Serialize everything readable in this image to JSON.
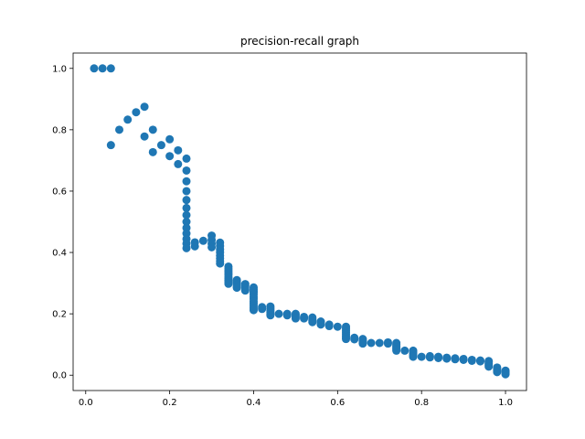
{
  "chart_data": {
    "type": "scatter",
    "title": "precision-recall graph",
    "xlabel": "",
    "ylabel": "",
    "xlim": [
      -0.03,
      1.05
    ],
    "ylim": [
      -0.05,
      1.05
    ],
    "x_ticks": [
      0.0,
      0.2,
      0.4,
      0.6,
      0.8,
      1.0
    ],
    "x_tick_labels": [
      "0.0",
      "0.2",
      "0.4",
      "0.6",
      "0.8",
      "1.0"
    ],
    "y_ticks": [
      0.0,
      0.2,
      0.4,
      0.6,
      0.8,
      1.0
    ],
    "y_tick_labels": [
      "0.0",
      "0.2",
      "0.4",
      "0.6",
      "0.8",
      "1.0"
    ],
    "grid": false,
    "legend": "none",
    "colors": {
      "points": "#1f77b4",
      "axes": "#000000",
      "background": "#ffffff"
    },
    "series": [
      {
        "points": [
          [
            0.02,
            1.0
          ],
          [
            0.04,
            1.0
          ],
          [
            0.06,
            1.0
          ],
          [
            0.06,
            0.75
          ],
          [
            0.08,
            0.8
          ],
          [
            0.1,
            0.833
          ],
          [
            0.12,
            0.857
          ],
          [
            0.14,
            0.875
          ],
          [
            0.14,
            0.778
          ],
          [
            0.16,
            0.8
          ],
          [
            0.16,
            0.727
          ],
          [
            0.18,
            0.75
          ],
          [
            0.2,
            0.769
          ],
          [
            0.2,
            0.714
          ],
          [
            0.22,
            0.733
          ],
          [
            0.22,
            0.688
          ],
          [
            0.24,
            0.706
          ],
          [
            0.24,
            0.667
          ],
          [
            0.24,
            0.632
          ],
          [
            0.24,
            0.6
          ],
          [
            0.24,
            0.571
          ],
          [
            0.24,
            0.545
          ],
          [
            0.24,
            0.522
          ],
          [
            0.24,
            0.5
          ],
          [
            0.24,
            0.48
          ],
          [
            0.24,
            0.462
          ],
          [
            0.24,
            0.444
          ],
          [
            0.24,
            0.429
          ],
          [
            0.24,
            0.414
          ],
          [
            0.26,
            0.433
          ],
          [
            0.26,
            0.42
          ],
          [
            0.28,
            0.438
          ],
          [
            0.3,
            0.455
          ],
          [
            0.3,
            0.441
          ],
          [
            0.3,
            0.429
          ],
          [
            0.3,
            0.417
          ],
          [
            0.32,
            0.432
          ],
          [
            0.32,
            0.421
          ],
          [
            0.32,
            0.41
          ],
          [
            0.32,
            0.4
          ],
          [
            0.32,
            0.39
          ],
          [
            0.32,
            0.381
          ],
          [
            0.32,
            0.372
          ],
          [
            0.32,
            0.364
          ],
          [
            0.34,
            0.354
          ],
          [
            0.34,
            0.347
          ],
          [
            0.34,
            0.34
          ],
          [
            0.34,
            0.333
          ],
          [
            0.34,
            0.327
          ],
          [
            0.34,
            0.32
          ],
          [
            0.34,
            0.315
          ],
          [
            0.34,
            0.309
          ],
          [
            0.34,
            0.304
          ],
          [
            0.34,
            0.298
          ],
          [
            0.36,
            0.31
          ],
          [
            0.36,
            0.305
          ],
          [
            0.36,
            0.3
          ],
          [
            0.36,
            0.295
          ],
          [
            0.36,
            0.29
          ],
          [
            0.36,
            0.285
          ],
          [
            0.38,
            0.297
          ],
          [
            0.38,
            0.292
          ],
          [
            0.38,
            0.287
          ],
          [
            0.38,
            0.281
          ],
          [
            0.38,
            0.276
          ],
          [
            0.4,
            0.286
          ],
          [
            0.4,
            0.28
          ],
          [
            0.4,
            0.275
          ],
          [
            0.4,
            0.27
          ],
          [
            0.4,
            0.263
          ],
          [
            0.4,
            0.255
          ],
          [
            0.4,
            0.248
          ],
          [
            0.4,
            0.24
          ],
          [
            0.4,
            0.233
          ],
          [
            0.4,
            0.226
          ],
          [
            0.4,
            0.219
          ],
          [
            0.4,
            0.212
          ],
          [
            0.42,
            0.222
          ],
          [
            0.42,
            0.216
          ],
          [
            0.44,
            0.224
          ],
          [
            0.44,
            0.218
          ],
          [
            0.44,
            0.212
          ],
          [
            0.44,
            0.206
          ],
          [
            0.44,
            0.2
          ],
          [
            0.44,
            0.195
          ],
          [
            0.46,
            0.2
          ],
          [
            0.48,
            0.2
          ],
          [
            0.48,
            0.195
          ],
          [
            0.5,
            0.2
          ],
          [
            0.5,
            0.195
          ],
          [
            0.5,
            0.19
          ],
          [
            0.5,
            0.185
          ],
          [
            0.52,
            0.19
          ],
          [
            0.52,
            0.185
          ],
          [
            0.54,
            0.188
          ],
          [
            0.54,
            0.183
          ],
          [
            0.54,
            0.178
          ],
          [
            0.54,
            0.173
          ],
          [
            0.56,
            0.175
          ],
          [
            0.56,
            0.17
          ],
          [
            0.56,
            0.165
          ],
          [
            0.58,
            0.165
          ],
          [
            0.58,
            0.16
          ],
          [
            0.6,
            0.158
          ],
          [
            0.62,
            0.158
          ],
          [
            0.62,
            0.152
          ],
          [
            0.62,
            0.146
          ],
          [
            0.62,
            0.14
          ],
          [
            0.62,
            0.134
          ],
          [
            0.62,
            0.128
          ],
          [
            0.62,
            0.123
          ],
          [
            0.62,
            0.118
          ],
          [
            0.64,
            0.122
          ],
          [
            0.64,
            0.117
          ],
          [
            0.66,
            0.118
          ],
          [
            0.66,
            0.113
          ],
          [
            0.66,
            0.108
          ],
          [
            0.66,
            0.103
          ],
          [
            0.68,
            0.105
          ],
          [
            0.7,
            0.105
          ],
          [
            0.72,
            0.107
          ],
          [
            0.72,
            0.103
          ],
          [
            0.74,
            0.105
          ],
          [
            0.74,
            0.1
          ],
          [
            0.74,
            0.095
          ],
          [
            0.74,
            0.09
          ],
          [
            0.74,
            0.085
          ],
          [
            0.74,
            0.08
          ],
          [
            0.76,
            0.08
          ],
          [
            0.78,
            0.08
          ],
          [
            0.78,
            0.075
          ],
          [
            0.78,
            0.07
          ],
          [
            0.78,
            0.065
          ],
          [
            0.78,
            0.06
          ],
          [
            0.8,
            0.06
          ],
          [
            0.82,
            0.062
          ],
          [
            0.82,
            0.058
          ],
          [
            0.84,
            0.06
          ],
          [
            0.84,
            0.056
          ],
          [
            0.86,
            0.057
          ],
          [
            0.86,
            0.054
          ],
          [
            0.88,
            0.055
          ],
          [
            0.88,
            0.052
          ],
          [
            0.9,
            0.053
          ],
          [
            0.9,
            0.05
          ],
          [
            0.92,
            0.05
          ],
          [
            0.92,
            0.047
          ],
          [
            0.94,
            0.048
          ],
          [
            0.94,
            0.045
          ],
          [
            0.96,
            0.046
          ],
          [
            0.96,
            0.043
          ],
          [
            0.96,
            0.038
          ],
          [
            0.96,
            0.033
          ],
          [
            0.96,
            0.028
          ],
          [
            0.98,
            0.025
          ],
          [
            0.98,
            0.02
          ],
          [
            0.98,
            0.015
          ],
          [
            0.98,
            0.01
          ],
          [
            1.0,
            0.015
          ],
          [
            1.0,
            0.012
          ],
          [
            1.0,
            0.009
          ],
          [
            1.0,
            0.006
          ],
          [
            1.0,
            0.003
          ]
        ]
      }
    ]
  }
}
